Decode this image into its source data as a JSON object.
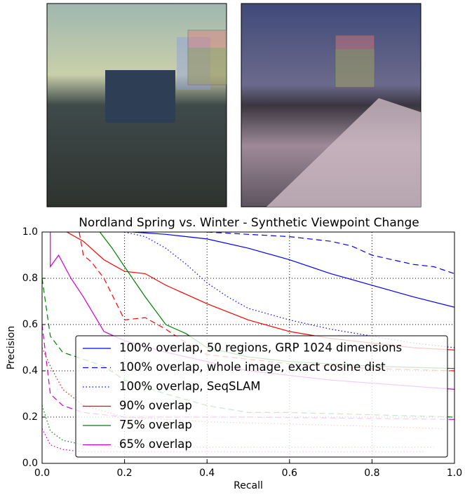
{
  "chart_data": {
    "type": "line",
    "title": "Nordland Spring vs. Winter - Synthetic Viewpoint Change",
    "x_label": "Recall",
    "y_label": "Precision",
    "xlim": [
      0,
      1
    ],
    "ylim": [
      0,
      1
    ],
    "xticks": [
      {
        "value": 0,
        "label": "0.0"
      },
      {
        "value": 0.2,
        "label": "0.2"
      },
      {
        "value": 0.4,
        "label": "0.4"
      },
      {
        "value": 0.6,
        "label": "0.6"
      },
      {
        "value": 0.8,
        "label": "0.8"
      },
      {
        "value": 1,
        "label": "1.0"
      }
    ],
    "yticks": [
      {
        "value": 0,
        "label": "0.0"
      },
      {
        "value": 0.2,
        "label": "0.2"
      },
      {
        "value": 0.4,
        "label": "0.4"
      },
      {
        "value": 0.6,
        "label": "0.6"
      },
      {
        "value": 0.8,
        "label": "0.8"
      },
      {
        "value": 1,
        "label": "1.0"
      }
    ],
    "grid": true,
    "legend": "lower right",
    "series": [
      {
        "name": "100% overlap, 50 regions, GRP 1024 dimensions",
        "color": "#0000ff",
        "style": "solid",
        "x": [
          0.22,
          0.3,
          0.4,
          0.5,
          0.6,
          0.7,
          0.8,
          0.9,
          1.0
        ],
        "values": [
          1.0,
          0.99,
          0.97,
          0.93,
          0.88,
          0.82,
          0.77,
          0.72,
          0.675
        ]
      },
      {
        "name": "100% overlap, whole image, exact cosine dist",
        "color": "#0000ff",
        "style": "dashed",
        "x": [
          0.4,
          0.5,
          0.6,
          0.7,
          0.75,
          0.8,
          0.85,
          0.9,
          0.95,
          1.0
        ],
        "values": [
          1.0,
          0.99,
          0.98,
          0.96,
          0.94,
          0.9,
          0.88,
          0.86,
          0.85,
          0.82
        ]
      },
      {
        "name": "100% overlap, SeqSLAM",
        "color": "#0000ff",
        "style": "dotted",
        "x": [
          0.2,
          0.25,
          0.3,
          0.35,
          0.4,
          0.45,
          0.5,
          0.6,
          0.7,
          0.8,
          0.9,
          1.0
        ],
        "values": [
          1.0,
          0.98,
          0.93,
          0.86,
          0.78,
          0.72,
          0.67,
          0.62,
          0.58,
          0.55,
          0.52,
          0.5
        ]
      },
      {
        "name": "90% overlap",
        "color": "#ff0000",
        "style": "solid",
        "x": [
          0.06,
          0.1,
          0.15,
          0.2,
          0.25,
          0.3,
          0.35,
          0.4,
          0.5,
          0.6,
          0.7,
          0.8,
          0.9,
          1.0
        ],
        "values": [
          1.0,
          0.96,
          0.88,
          0.83,
          0.82,
          0.77,
          0.73,
          0.69,
          0.62,
          0.57,
          0.54,
          0.52,
          0.5,
          0.49
        ]
      },
      {
        "color": "#ff0000",
        "style": "dashed",
        "x": [
          0.09,
          0.1,
          0.12,
          0.15,
          0.2,
          0.25,
          0.3,
          0.35,
          0.4,
          0.5,
          0.6,
          0.8,
          1.0
        ],
        "values": [
          1.0,
          0.9,
          0.87,
          0.8,
          0.62,
          0.63,
          0.58,
          0.52,
          0.47,
          0.45,
          0.43,
          0.41,
          0.4
        ]
      },
      {
        "color": "#ff0000",
        "style": "dotted",
        "x": [
          0.0,
          0.02,
          0.05,
          0.1,
          0.2,
          0.4,
          0.6,
          0.8,
          0.97
        ],
        "values": [
          0.5,
          0.42,
          0.32,
          0.25,
          0.2,
          0.18,
          0.17,
          0.16,
          0.15
        ]
      },
      {
        "name": "75% overlap",
        "color": "#008000",
        "style": "solid",
        "x": [
          0.14,
          0.17,
          0.2,
          0.25,
          0.3,
          0.35,
          0.4,
          0.5,
          0.6,
          0.8,
          1.0
        ],
        "values": [
          1.0,
          0.93,
          0.85,
          0.72,
          0.6,
          0.56,
          0.5,
          0.46,
          0.44,
          0.42,
          0.41
        ]
      },
      {
        "color": "#008000",
        "style": "dashed",
        "x": [
          0.0,
          0.02,
          0.05,
          0.1,
          0.15,
          0.2,
          0.3,
          0.4,
          0.5,
          0.6,
          0.8,
          1.0
        ],
        "values": [
          0.8,
          0.55,
          0.48,
          0.45,
          0.42,
          0.36,
          0.3,
          0.25,
          0.22,
          0.22,
          0.21,
          0.2
        ]
      },
      {
        "color": "#008000",
        "style": "dotted",
        "x": [
          0.0,
          0.02,
          0.05,
          0.1,
          0.2,
          0.5,
          0.95
        ],
        "values": [
          0.25,
          0.14,
          0.1,
          0.08,
          0.07,
          0.07,
          0.07
        ]
      },
      {
        "name": "65% overlap",
        "color": "#cc00cc",
        "style": "solid",
        "x": [
          0.02,
          0.02,
          0.04,
          0.07,
          0.1,
          0.13,
          0.15,
          0.2,
          0.3,
          0.5,
          0.7,
          1.0
        ],
        "values": [
          1.0,
          0.85,
          0.9,
          0.8,
          0.72,
          0.63,
          0.57,
          0.53,
          0.48,
          0.4,
          0.36,
          0.32
        ]
      },
      {
        "color": "#cc00cc",
        "style": "dashed",
        "x": [
          0.0,
          0.02,
          0.05,
          0.1,
          0.2,
          0.5,
          1.0
        ],
        "values": [
          0.6,
          0.3,
          0.25,
          0.22,
          0.2,
          0.2,
          0.19
        ]
      },
      {
        "color": "#cc00cc",
        "style": "dotted",
        "x": [
          0.0,
          0.02,
          0.05,
          0.1,
          0.3,
          0.6,
          0.93
        ],
        "values": [
          0.15,
          0.08,
          0.06,
          0.05,
          0.05,
          0.05,
          0.05
        ]
      }
    ]
  }
}
